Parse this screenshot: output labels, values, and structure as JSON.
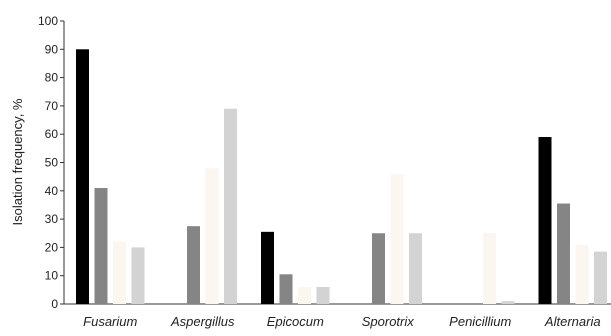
{
  "chart_data": {
    "type": "bar",
    "ylabel": "Isolation frequency, %",
    "ylim": [
      0,
      100
    ],
    "yticks": [
      0,
      10,
      20,
      30,
      40,
      50,
      60,
      70,
      80,
      90,
      100
    ],
    "categories": [
      "Fusarium",
      "Aspergillus",
      "Epicocum",
      "Sporotrix",
      "Penicillium",
      "Alternaria"
    ],
    "series": [
      {
        "color": "#000000",
        "values": [
          90,
          0,
          25.5,
          0,
          0,
          59
        ]
      },
      {
        "color": "#858585",
        "values": [
          41,
          27.5,
          10.5,
          25,
          0,
          35.5
        ]
      },
      {
        "color": "#fbf6ef",
        "values": [
          22,
          48,
          6,
          46,
          25,
          21
        ]
      },
      {
        "color": "#d3d3d3",
        "values": [
          20,
          69,
          6,
          25,
          1,
          18.5
        ]
      }
    ],
    "grid": false
  }
}
